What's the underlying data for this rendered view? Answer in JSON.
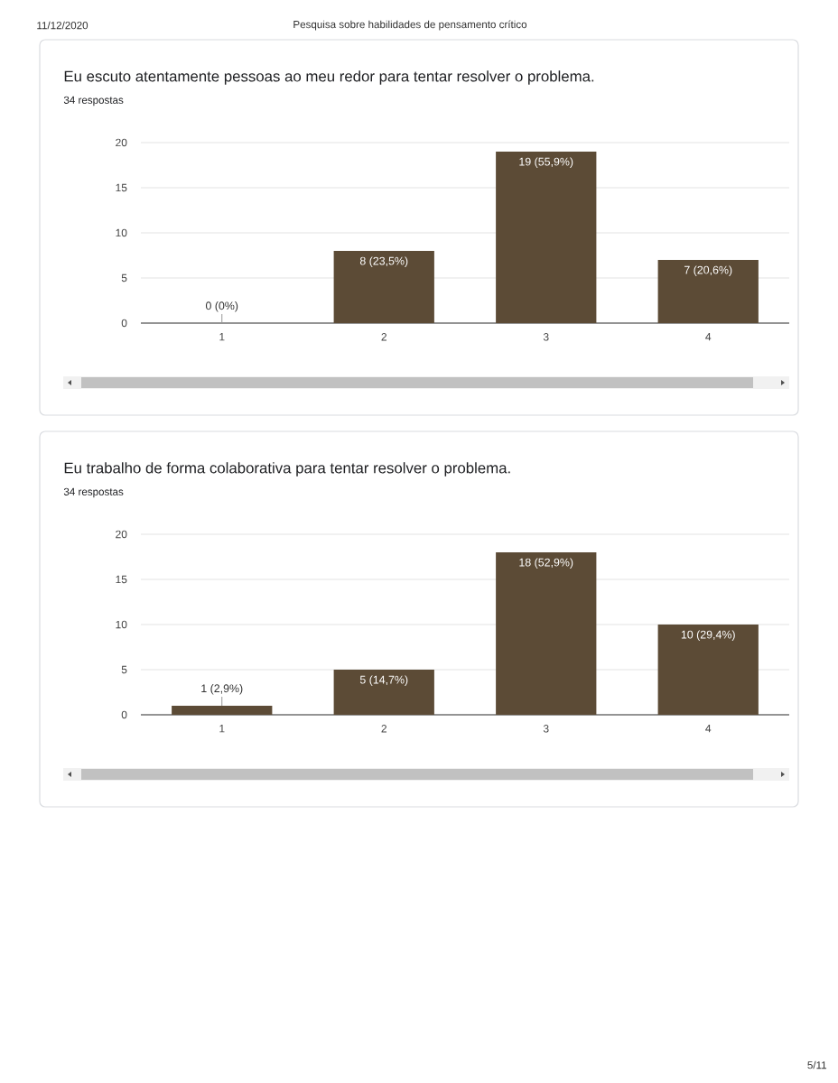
{
  "chart_data": [
    {
      "type": "bar",
      "title": "Eu escuto atentamente pessoas ao meu redor para tentar resolver o problema.",
      "subtitle": "34 respostas",
      "annotations": [
        "11/12/2020",
        "Pesquisa sobre habilidades de pensamento crítico"
      ],
      "categories": [
        "1",
        "2",
        "3",
        "4"
      ],
      "values": [
        0,
        8,
        19,
        7
      ],
      "value_labels": [
        "0 (0%)",
        "8 (23,5%)",
        "19 (55,9%)",
        "7 (20,6%)"
      ],
      "color": "#5c4b36",
      "ylim": [
        0,
        20
      ],
      "yticks": [
        0,
        5,
        10,
        15,
        20
      ],
      "grid": "y"
    },
    {
      "type": "bar",
      "title": "Eu trabalho de forma colaborativa para tentar resolver o problema.",
      "subtitle": "34 respostas",
      "annotations": [
        "5/11"
      ],
      "categories": [
        "1",
        "2",
        "3",
        "4"
      ],
      "values": [
        1,
        5,
        18,
        10
      ],
      "value_labels": [
        "1 (2,9%)",
        "5 (14,7%)",
        "18 (52,9%)",
        "10 (29,4%)"
      ],
      "color": "#5c4b36",
      "ylim": [
        0,
        20
      ],
      "yticks": [
        0,
        5,
        10,
        15,
        20
      ],
      "grid": "y"
    }
  ]
}
